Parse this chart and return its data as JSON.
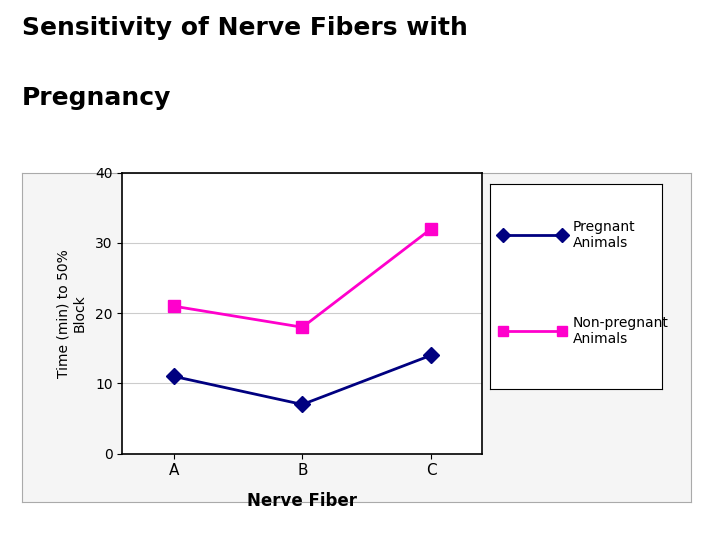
{
  "title_line1": "Sensitivity of Nerve Fibers with",
  "title_line2": "Pregnancy",
  "title_fontsize": 18,
  "title_fontweight": "bold",
  "background_color": "#ffffff",
  "highlight_color": "#D4A017",
  "categories": [
    "A",
    "B",
    "C"
  ],
  "pregnant_values": [
    11,
    7,
    14
  ],
  "nonpregnant_values": [
    21,
    18,
    32
  ],
  "pregnant_color": "#000080",
  "nonpregnant_color": "#FF00CC",
  "xlabel": "Nerve Fiber",
  "xlabel_fontsize": 12,
  "xlabel_fontweight": "bold",
  "ylabel_line1": "Time (min) to 50%",
  "ylabel_line2": "Block",
  "ylabel_fontsize": 10,
  "ylim": [
    0,
    40
  ],
  "yticks": [
    0,
    10,
    20,
    30,
    40
  ],
  "legend_pregnant": "Pregnant\nAnimals",
  "legend_nonpregnant": "Non-pregnant\nAnimals",
  "legend_fontsize": 10,
  "marker_size": 8,
  "line_width": 2
}
